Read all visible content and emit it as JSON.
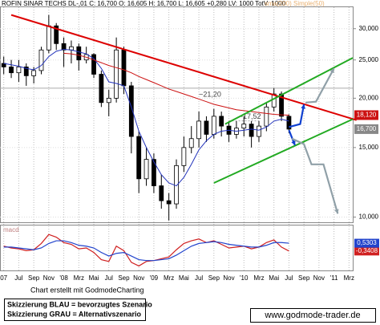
{
  "chart_data": [
    {
      "type": "candlestick",
      "title": "ROFIN SINAR TECHS  DL-,01  C: 16,700  O: 16,605  H: 16,700  L: 16,605  +0,280  LV: 1000  TotV: 1000",
      "subtitle": "sma(200)  Simple(50)",
      "x": [
        0,
        1,
        2,
        3,
        4,
        5,
        6,
        7,
        8,
        9,
        10,
        11,
        12,
        13,
        14,
        15,
        16,
        17,
        18,
        19,
        20,
        21,
        22,
        23,
        24,
        25,
        26,
        27,
        28,
        29,
        30,
        31,
        32,
        33,
        34,
        35,
        36,
        37,
        38
      ],
      "open": [
        24.5,
        24.0,
        23.2,
        24.0,
        22.8,
        23.5,
        26.5,
        30.5,
        27.5,
        26.5,
        27.0,
        25.0,
        25.8,
        23.0,
        19.5,
        20.0,
        26.5,
        21.5,
        16.0,
        12.5,
        14.0,
        12.0,
        11.0,
        10.8,
        13.5,
        15.0,
        15.8,
        17.5,
        16.2,
        18.0,
        17.0,
        16.2,
        16.8,
        17.2,
        16.0,
        17.0,
        19.0,
        20.5,
        18.0
      ],
      "high": [
        25.5,
        25,
        25,
        24.5,
        24,
        27,
        32.5,
        31,
        28.5,
        28,
        27.5,
        27,
        26,
        23.5,
        21,
        28.5,
        27,
        22,
        16.5,
        15,
        14.5,
        12.8,
        11.5,
        14,
        16,
        17,
        18.5,
        18,
        18.8,
        18.5,
        17.5,
        17.5,
        18,
        17.5,
        17.5,
        19.5,
        21.2,
        20.8,
        18.2
      ],
      "low": [
        23,
        22.5,
        22,
        21.5,
        21.8,
        23,
        26,
        26.5,
        24,
        24.5,
        23.5,
        24.5,
        22.5,
        19,
        18,
        19.5,
        20.5,
        14.5,
        11.5,
        12,
        11.5,
        10.5,
        9.8,
        10.5,
        13,
        14.5,
        15,
        15.5,
        15.8,
        16,
        15.5,
        15.8,
        16,
        15,
        15.5,
        16.5,
        18.5,
        17.5,
        16.3
      ],
      "close": [
        24.0,
        23.2,
        24.0,
        22.8,
        23.5,
        26.5,
        30.5,
        27.5,
        26.5,
        27.0,
        25.0,
        25.8,
        23.0,
        19.5,
        20.0,
        26.5,
        21.5,
        16.0,
        12.5,
        14.0,
        12.0,
        11.0,
        10.8,
        13.5,
        15.0,
        15.8,
        17.5,
        16.2,
        18.0,
        17.0,
        16.2,
        16.8,
        17.2,
        16.0,
        17.0,
        19.0,
        20.5,
        18.0,
        16.7
      ],
      "lines": [
        {
          "color": "#2233bb",
          "values": [
            24.5,
            24.3,
            24.1,
            23.8,
            23.6,
            24.2,
            25.5,
            26.3,
            26.6,
            26.5,
            26.2,
            25.9,
            25.2,
            23.8,
            22.0,
            21.8,
            21.5,
            19.0,
            16.5,
            15.0,
            13.8,
            12.8,
            12.2,
            12.0,
            12.6,
            13.6,
            14.8,
            15.6,
            16.2,
            16.5,
            16.6,
            16.5,
            16.6,
            16.7,
            16.6,
            16.9,
            17.5,
            17.7,
            17.5
          ]
        },
        {
          "color": "#cc1111",
          "values": [
            null,
            null,
            null,
            null,
            null,
            null,
            null,
            null,
            26.0,
            25.9,
            25.7,
            25.4,
            25.0,
            24.6,
            24.2,
            23.9,
            23.6,
            23.2,
            22.7,
            22.3,
            21.9,
            21.5,
            21.1,
            20.8,
            20.5,
            20.2,
            19.9,
            19.6,
            19.3,
            19.1,
            18.9,
            18.7,
            18.6,
            18.5,
            18.4,
            18.3,
            18.2,
            18.15,
            18.12
          ]
        }
      ],
      "trendlines": [
        {
          "color": "#dd0000",
          "points": [
            [
              1,
              32.5
            ],
            [
              47,
              17.6
            ]
          ]
        },
        {
          "color": "#22aa22",
          "points": [
            [
              29.5,
              17.2
            ],
            [
              46.5,
              25.3
            ]
          ]
        },
        {
          "color": "#22aa22",
          "points": [
            [
              28,
              12.2
            ],
            [
              46.5,
              17.7
            ]
          ]
        },
        {
          "color": "#1040d0",
          "points": [
            [
              38,
              16.9
            ],
            [
              39.5,
              17.2
            ],
            [
              40,
              19.3
            ]
          ]
        },
        {
          "color": "#1040d0",
          "points": [
            [
              38,
              16.6
            ],
            [
              38.8,
              15.2
            ]
          ]
        },
        {
          "color": "#90a0a8",
          "points": [
            [
              40.2,
              19.5
            ],
            [
              41.6,
              19.6
            ],
            [
              44,
              23.8
            ]
          ]
        },
        {
          "color": "#90a0a8",
          "points": [
            [
              38.4,
              15.8
            ],
            [
              40,
              15.3
            ],
            [
              41,
              13.6
            ],
            [
              42.6,
              13.6
            ],
            [
              44.5,
              10.2
            ]
          ]
        }
      ],
      "annotations": [
        {
          "text": "~21,20",
          "value": 21.2
        },
        {
          "text": "~17,52",
          "value": 17.52
        }
      ],
      "last_labels": [
        {
          "value": 18.12,
          "label": "18,120",
          "color": "#cc1111"
        },
        {
          "value": 16.7,
          "label": "16,700",
          "color": "#888888"
        }
      ],
      "xlim": [
        -0.5,
        46.5
      ],
      "ylim": [
        9.7,
        34
      ],
      "log_scale": true,
      "grid": true,
      "yticks": [
        {
          "value": 10,
          "label": "10,000"
        },
        {
          "value": 15,
          "label": "15,000"
        },
        {
          "value": 20,
          "label": "20,000"
        },
        {
          "value": 25,
          "label": "25,000"
        },
        {
          "value": 30,
          "label": "30,000"
        }
      ],
      "xticks": [
        {
          "value": 0,
          "label": "07"
        },
        {
          "value": 2,
          "label": "Jul"
        },
        {
          "value": 4,
          "label": "Sep"
        },
        {
          "value": 6,
          "label": "Nov"
        },
        {
          "value": 8,
          "label": "'08"
        },
        {
          "value": 10,
          "label": "Mrz"
        },
        {
          "value": 12,
          "label": "Mai"
        },
        {
          "value": 14,
          "label": "Jul"
        },
        {
          "value": 16,
          "label": "Sep"
        },
        {
          "value": 18,
          "label": "Nov"
        },
        {
          "value": 20,
          "label": "'09"
        },
        {
          "value": 22,
          "label": "Mrz"
        },
        {
          "value": 24,
          "label": "Mai"
        },
        {
          "value": 26,
          "label": "Jul"
        },
        {
          "value": 28,
          "label": "Sep"
        },
        {
          "value": 30,
          "label": "Nov"
        },
        {
          "value": 32,
          "label": "'10"
        },
        {
          "value": 34,
          "label": "Mrz"
        },
        {
          "value": 36,
          "label": "Mai"
        },
        {
          "value": 38,
          "label": "Jul"
        },
        {
          "value": 40,
          "label": "Sep"
        },
        {
          "value": 42,
          "label": "Nov"
        },
        {
          "value": 44,
          "label": "'11"
        },
        {
          "value": 46,
          "label": "Mrz"
        }
      ]
    },
    {
      "type": "line",
      "title": "macd",
      "xlim": [
        -0.5,
        46.5
      ],
      "ylim": [
        -2.5,
        2.5
      ],
      "series": [
        {
          "color": "#d02020",
          "values": [
            0.2,
            0,
            -0.1,
            -0.3,
            -0.2,
            0.5,
            1.5,
            1.2,
            0.6,
            0.4,
            -0.1,
            0,
            -0.5,
            -1.3,
            -1.5,
            0.2,
            -0.3,
            -1.6,
            -2.0,
            -1.5,
            -1.4,
            -1.2,
            -1.0,
            -0.2,
            0.5,
            0.8,
            1.0,
            0.6,
            0.8,
            0.4,
            0,
            0.1,
            0.2,
            -0.1,
            0.1,
            0.6,
            0.9,
            0.1,
            -0.3408
          ],
          "value_labels": "-0,3408"
        },
        {
          "color": "#2244cc",
          "values": [
            0.1,
            0.1,
            0,
            -0.1,
            -0.2,
            0,
            0.5,
            0.8,
            0.8,
            0.6,
            0.3,
            0.2,
            0,
            -0.5,
            -0.9,
            -0.6,
            -0.5,
            -0.9,
            -1.3,
            -1.4,
            -1.4,
            -1.3,
            -1.2,
            -0.8,
            -0.3,
            0.2,
            0.5,
            0.6,
            0.7,
            0.6,
            0.4,
            0.3,
            0.2,
            0.1,
            0.1,
            0.3,
            0.6,
            0.6,
            0.5303
          ],
          "value_labels": "0,5303"
        }
      ]
    }
  ],
  "footer": {
    "credit": "Chart erstellt mit GodmodeCharting",
    "legend": [
      "Skizzierung BLAU = bevorzugtes Szenario",
      "Skizzierung GRAU = Alternativszenario"
    ],
    "url": "www.godmode-trader.de"
  }
}
